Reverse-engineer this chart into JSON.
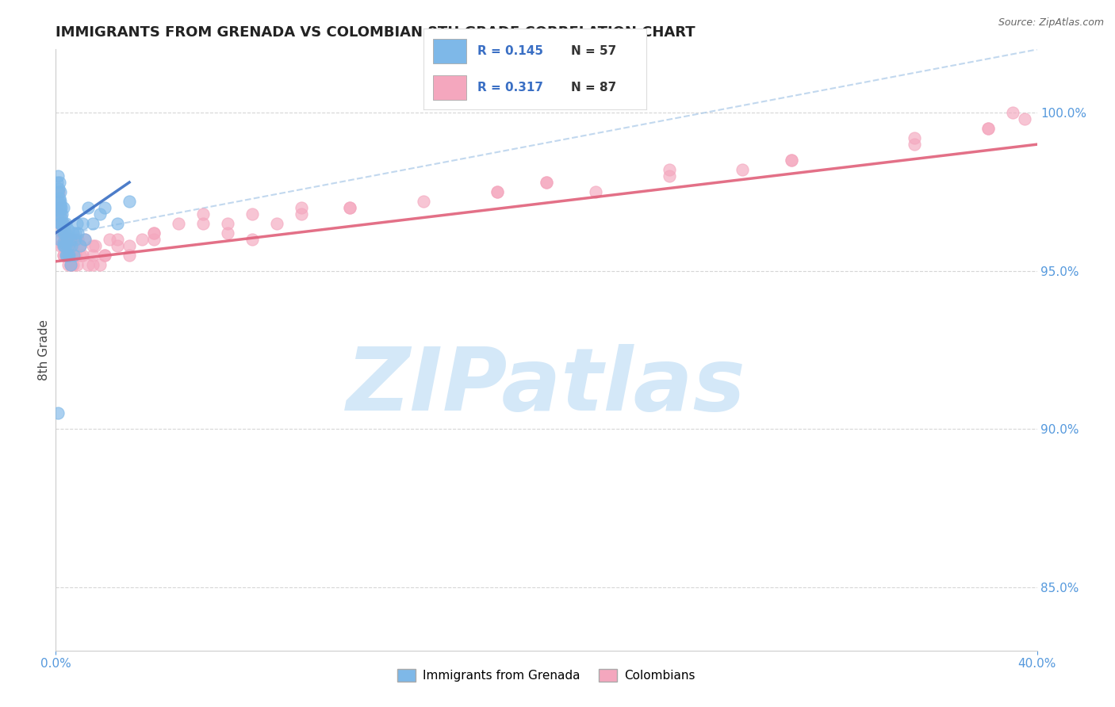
{
  "title": "IMMIGRANTS FROM GRENADA VS COLOMBIAN 8TH GRADE CORRELATION CHART",
  "source": "Source: ZipAtlas.com",
  "ylabel": "8th Grade",
  "legend1_r": "0.145",
  "legend1_n": "57",
  "legend2_r": "0.317",
  "legend2_n": "87",
  "blue_scatter_color": "#7eb8e8",
  "pink_scatter_color": "#f4a7be",
  "blue_line_color": "#3a6fc4",
  "pink_line_color": "#e0607a",
  "blue_dashed_color": "#a8c8e8",
  "watermark_color": "#d4e8f8",
  "xlim": [
    0.0,
    40.0
  ],
  "ylim": [
    83.0,
    102.0
  ],
  "yticks": [
    85.0,
    90.0,
    95.0,
    100.0
  ],
  "legend_r_color": "#3a6fc4",
  "legend_n_color": "#333333",
  "ytick_color": "#5599dd",
  "xtick_color": "#5599dd",
  "grenada_x": [
    0.05,
    0.08,
    0.1,
    0.12,
    0.12,
    0.14,
    0.15,
    0.15,
    0.16,
    0.18,
    0.18,
    0.18,
    0.2,
    0.2,
    0.22,
    0.22,
    0.25,
    0.25,
    0.28,
    0.3,
    0.3,
    0.3,
    0.32,
    0.35,
    0.35,
    0.38,
    0.4,
    0.4,
    0.45,
    0.45,
    0.5,
    0.5,
    0.55,
    0.6,
    0.65,
    0.7,
    0.75,
    0.8,
    0.85,
    0.9,
    1.0,
    1.1,
    1.2,
    1.3,
    1.5,
    1.8,
    2.0,
    2.5,
    3.0,
    0.1,
    0.4,
    0.6,
    0.2,
    0.3,
    0.15,
    0.5,
    0.8
  ],
  "grenada_y": [
    97.8,
    98.0,
    97.5,
    97.2,
    97.6,
    97.0,
    97.8,
    97.3,
    96.8,
    97.5,
    97.1,
    96.5,
    96.9,
    97.2,
    96.7,
    97.0,
    96.5,
    96.8,
    96.3,
    96.5,
    97.0,
    96.2,
    95.9,
    96.4,
    95.8,
    96.2,
    95.8,
    96.5,
    95.5,
    96.0,
    95.8,
    96.3,
    95.5,
    96.0,
    95.8,
    96.2,
    95.5,
    96.0,
    96.5,
    96.2,
    95.8,
    96.5,
    96.0,
    97.0,
    96.5,
    96.8,
    97.0,
    96.5,
    97.2,
    90.5,
    95.5,
    95.2,
    96.5,
    95.8,
    96.0,
    95.5,
    96.2
  ],
  "colombian_x": [
    0.08,
    0.1,
    0.12,
    0.15,
    0.15,
    0.18,
    0.2,
    0.22,
    0.25,
    0.28,
    0.3,
    0.32,
    0.35,
    0.38,
    0.4,
    0.45,
    0.5,
    0.52,
    0.55,
    0.6,
    0.62,
    0.65,
    0.7,
    0.75,
    0.8,
    0.85,
    0.9,
    1.0,
    1.1,
    1.2,
    1.3,
    1.5,
    1.6,
    1.8,
    2.0,
    2.2,
    2.5,
    3.0,
    3.5,
    4.0,
    5.0,
    6.0,
    7.0,
    8.0,
    9.0,
    10.0,
    12.0,
    15.0,
    18.0,
    20.0,
    22.0,
    25.0,
    28.0,
    30.0,
    35.0,
    38.0,
    39.5,
    0.2,
    0.4,
    0.6,
    0.8,
    1.0,
    1.5,
    2.0,
    3.0,
    4.0,
    6.0,
    8.0,
    12.0,
    20.0,
    30.0,
    38.0,
    0.3,
    0.5,
    0.7,
    1.0,
    1.5,
    2.5,
    4.0,
    7.0,
    10.0,
    18.0,
    25.0,
    35.0,
    39.0
  ],
  "colombian_y": [
    97.2,
    96.8,
    97.5,
    96.5,
    97.0,
    96.8,
    96.5,
    96.0,
    96.2,
    95.8,
    96.5,
    95.5,
    96.0,
    95.8,
    96.2,
    95.5,
    96.0,
    95.2,
    95.8,
    95.5,
    96.0,
    95.2,
    95.8,
    96.0,
    95.5,
    95.2,
    96.0,
    95.8,
    95.5,
    96.0,
    95.2,
    95.5,
    95.8,
    95.2,
    95.5,
    96.0,
    95.8,
    95.5,
    96.0,
    96.2,
    96.5,
    96.8,
    96.2,
    96.0,
    96.5,
    96.8,
    97.0,
    97.2,
    97.5,
    97.8,
    97.5,
    98.0,
    98.2,
    98.5,
    99.0,
    99.5,
    99.8,
    95.8,
    95.5,
    95.2,
    95.5,
    95.8,
    95.2,
    95.5,
    95.8,
    96.0,
    96.5,
    96.8,
    97.0,
    97.8,
    98.5,
    99.5,
    95.5,
    95.8,
    95.2,
    95.5,
    95.8,
    96.0,
    96.2,
    96.5,
    97.0,
    97.5,
    98.2,
    99.2,
    100.0
  ]
}
